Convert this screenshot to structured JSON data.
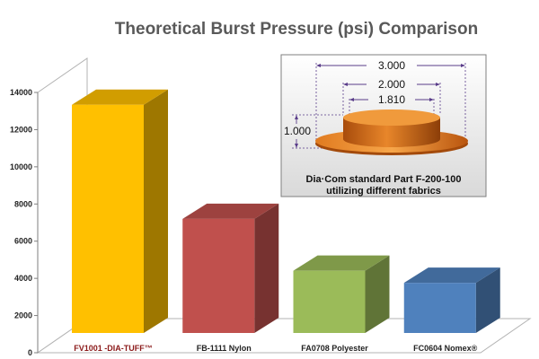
{
  "chart_data": {
    "type": "bar",
    "title": "Theoretical Burst Pressure (psi) Comparison",
    "categories": [
      "FV1001 -DIA-TUFF™",
      "FB-1111 Nylon",
      "FA0708 Polyester",
      "FC0604 Nomex®"
    ],
    "values": [
      13200,
      6600,
      3600,
      2900
    ],
    "colors": [
      "#ffc000",
      "#c0504d",
      "#9bbb59",
      "#4f81bd"
    ],
    "ylim": [
      0,
      14000
    ],
    "y_ticks": [
      "0",
      "2000",
      "4000",
      "6000",
      "8000",
      "10000",
      "12000",
      "14000"
    ],
    "highlight_category": 0,
    "grid": false,
    "projection": "3d"
  },
  "inset": {
    "dimensions": [
      "3.000",
      "2.000",
      "1.810",
      "1.000"
    ],
    "caption_line1": "Dia·Com  standard Part F-200-100",
    "caption_line2": "utilizing different fabrics"
  }
}
